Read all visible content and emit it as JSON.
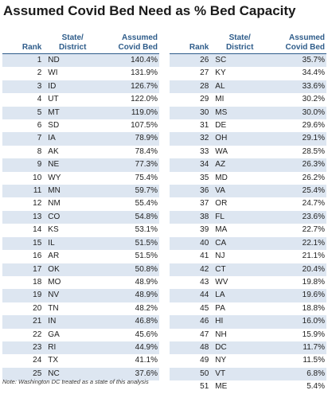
{
  "title": "Assumed Covid Bed Need as % Bed Capacity",
  "note": "Note: Washington DC treated as a state of this analysis",
  "headers": {
    "rank": "Rank",
    "state_line1": "State/",
    "state_line2": "District",
    "value_line1": "Assumed",
    "value_line2": "Covid Bed"
  },
  "chart_data": {
    "type": "table",
    "columns": [
      "Rank",
      "State/District",
      "Assumed Covid Bed"
    ],
    "rows": [
      {
        "rank": "1",
        "state": "ND",
        "value": "140.4%"
      },
      {
        "rank": "2",
        "state": "WI",
        "value": "131.9%"
      },
      {
        "rank": "3",
        "state": "ID",
        "value": "126.7%"
      },
      {
        "rank": "4",
        "state": "UT",
        "value": "122.0%"
      },
      {
        "rank": "5",
        "state": "MT",
        "value": "119.0%"
      },
      {
        "rank": "6",
        "state": "SD",
        "value": "107.5%"
      },
      {
        "rank": "7",
        "state": "IA",
        "value": "78.9%"
      },
      {
        "rank": "8",
        "state": "AK",
        "value": "78.4%"
      },
      {
        "rank": "9",
        "state": "NE",
        "value": "77.3%"
      },
      {
        "rank": "10",
        "state": "WY",
        "value": "75.4%"
      },
      {
        "rank": "11",
        "state": "MN",
        "value": "59.7%"
      },
      {
        "rank": "12",
        "state": "NM",
        "value": "55.4%"
      },
      {
        "rank": "13",
        "state": "CO",
        "value": "54.8%"
      },
      {
        "rank": "14",
        "state": "KS",
        "value": "53.1%"
      },
      {
        "rank": "15",
        "state": "IL",
        "value": "51.5%"
      },
      {
        "rank": "16",
        "state": "AR",
        "value": "51.5%"
      },
      {
        "rank": "17",
        "state": "OK",
        "value": "50.8%"
      },
      {
        "rank": "18",
        "state": "MO",
        "value": "48.9%"
      },
      {
        "rank": "19",
        "state": "NV",
        "value": "48.9%"
      },
      {
        "rank": "20",
        "state": "TN",
        "value": "48.2%"
      },
      {
        "rank": "21",
        "state": "IN",
        "value": "46.8%"
      },
      {
        "rank": "22",
        "state": "GA",
        "value": "45.6%"
      },
      {
        "rank": "23",
        "state": "RI",
        "value": "44.9%"
      },
      {
        "rank": "24",
        "state": "TX",
        "value": "41.1%"
      },
      {
        "rank": "25",
        "state": "NC",
        "value": "37.6%"
      },
      {
        "rank": "26",
        "state": "SC",
        "value": "35.7%"
      },
      {
        "rank": "27",
        "state": "KY",
        "value": "34.4%"
      },
      {
        "rank": "28",
        "state": "AL",
        "value": "33.6%"
      },
      {
        "rank": "29",
        "state": "MI",
        "value": "30.2%"
      },
      {
        "rank": "30",
        "state": "MS",
        "value": "30.0%"
      },
      {
        "rank": "31",
        "state": "DE",
        "value": "29.6%"
      },
      {
        "rank": "32",
        "state": "OH",
        "value": "29.1%"
      },
      {
        "rank": "33",
        "state": "WA",
        "value": "28.5%"
      },
      {
        "rank": "34",
        "state": "AZ",
        "value": "26.3%"
      },
      {
        "rank": "35",
        "state": "MD",
        "value": "26.2%"
      },
      {
        "rank": "36",
        "state": "VA",
        "value": "25.4%"
      },
      {
        "rank": "37",
        "state": "OR",
        "value": "24.7%"
      },
      {
        "rank": "38",
        "state": "FL",
        "value": "23.6%"
      },
      {
        "rank": "39",
        "state": "MA",
        "value": "22.7%"
      },
      {
        "rank": "40",
        "state": "CA",
        "value": "22.1%"
      },
      {
        "rank": "41",
        "state": "NJ",
        "value": "21.1%"
      },
      {
        "rank": "42",
        "state": "CT",
        "value": "20.4%"
      },
      {
        "rank": "43",
        "state": "WV",
        "value": "19.8%"
      },
      {
        "rank": "44",
        "state": "LA",
        "value": "19.6%"
      },
      {
        "rank": "45",
        "state": "PA",
        "value": "18.8%"
      },
      {
        "rank": "46",
        "state": "HI",
        "value": "16.0%"
      },
      {
        "rank": "47",
        "state": "NH",
        "value": "15.9%"
      },
      {
        "rank": "48",
        "state": "DC",
        "value": "11.7%"
      },
      {
        "rank": "49",
        "state": "NY",
        "value": "11.5%"
      },
      {
        "rank": "50",
        "state": "VT",
        "value": "6.8%"
      },
      {
        "rank": "51",
        "state": "ME",
        "value": "5.4%"
      }
    ]
  }
}
